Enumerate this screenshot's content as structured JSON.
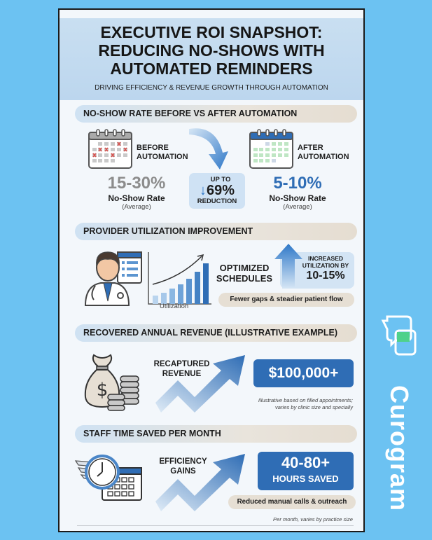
{
  "header": {
    "title_lines": [
      "EXECUTIVE ROI SNAPSHOT:",
      "REDUCING NO-SHOWS WITH",
      "AUTOMATED REMINDERS"
    ],
    "subtitle": "DRIVING EFFICIENCY & REVENUE GROWTH THROUGH AUTOMATION"
  },
  "noshow": {
    "heading": "NO-SHOW RATE BEFORE VS AFTER AUTOMATION",
    "before": {
      "label_lines": [
        "BEFORE",
        "AUTOMATION"
      ],
      "value": "15-30%",
      "caption": "No-Show Rate",
      "sub": "(Average)"
    },
    "reduction": {
      "top": "UP TO",
      "value": "69%",
      "bottom": "REDUCTION"
    },
    "after": {
      "label_lines": [
        "AFTER",
        "AUTOMATION"
      ],
      "value": "5-10%",
      "caption": "No-Show Rate",
      "sub": "(Average)"
    }
  },
  "utilization": {
    "heading": "PROVIDER UTILIZATION IMPROVEMENT",
    "chart_label": "Utilization",
    "optimized_lines": [
      "OPTIMIZED",
      "SCHEDULES"
    ],
    "increase_lines": [
      "INCREASED",
      "UTILIZATION BY"
    ],
    "increase_value": "10-15%",
    "tag": "Fewer gaps & steadier patient flow"
  },
  "revenue": {
    "heading": "RECOVERED ANNUAL REVENUE (ILLUSTRATIVE EXAMPLE)",
    "label_lines": [
      "RECAPTURED",
      "REVENUE"
    ],
    "value": "$100,000+",
    "note_lines": [
      "Illustrative based on filled appointments;",
      "varies by clinic size and specially"
    ]
  },
  "staff": {
    "heading": "STAFF TIME SAVED PER MONTH",
    "label_lines": [
      "EFFICIENCY",
      "GAINS"
    ],
    "value": "40-80+",
    "value_sub": "HOURS SAVED",
    "tag": "Reduced manual calls & outreach",
    "note": "Per month, varies by practice size"
  },
  "brand": {
    "name": "Curogram",
    "accent": "#4fd18b",
    "background": "#6cc2f2"
  },
  "colors": {
    "primary_blue": "#2f6db5",
    "grey_stat": "#8c8c8c",
    "no_show_x": "#d9534f",
    "check_green": "#4caf50"
  }
}
